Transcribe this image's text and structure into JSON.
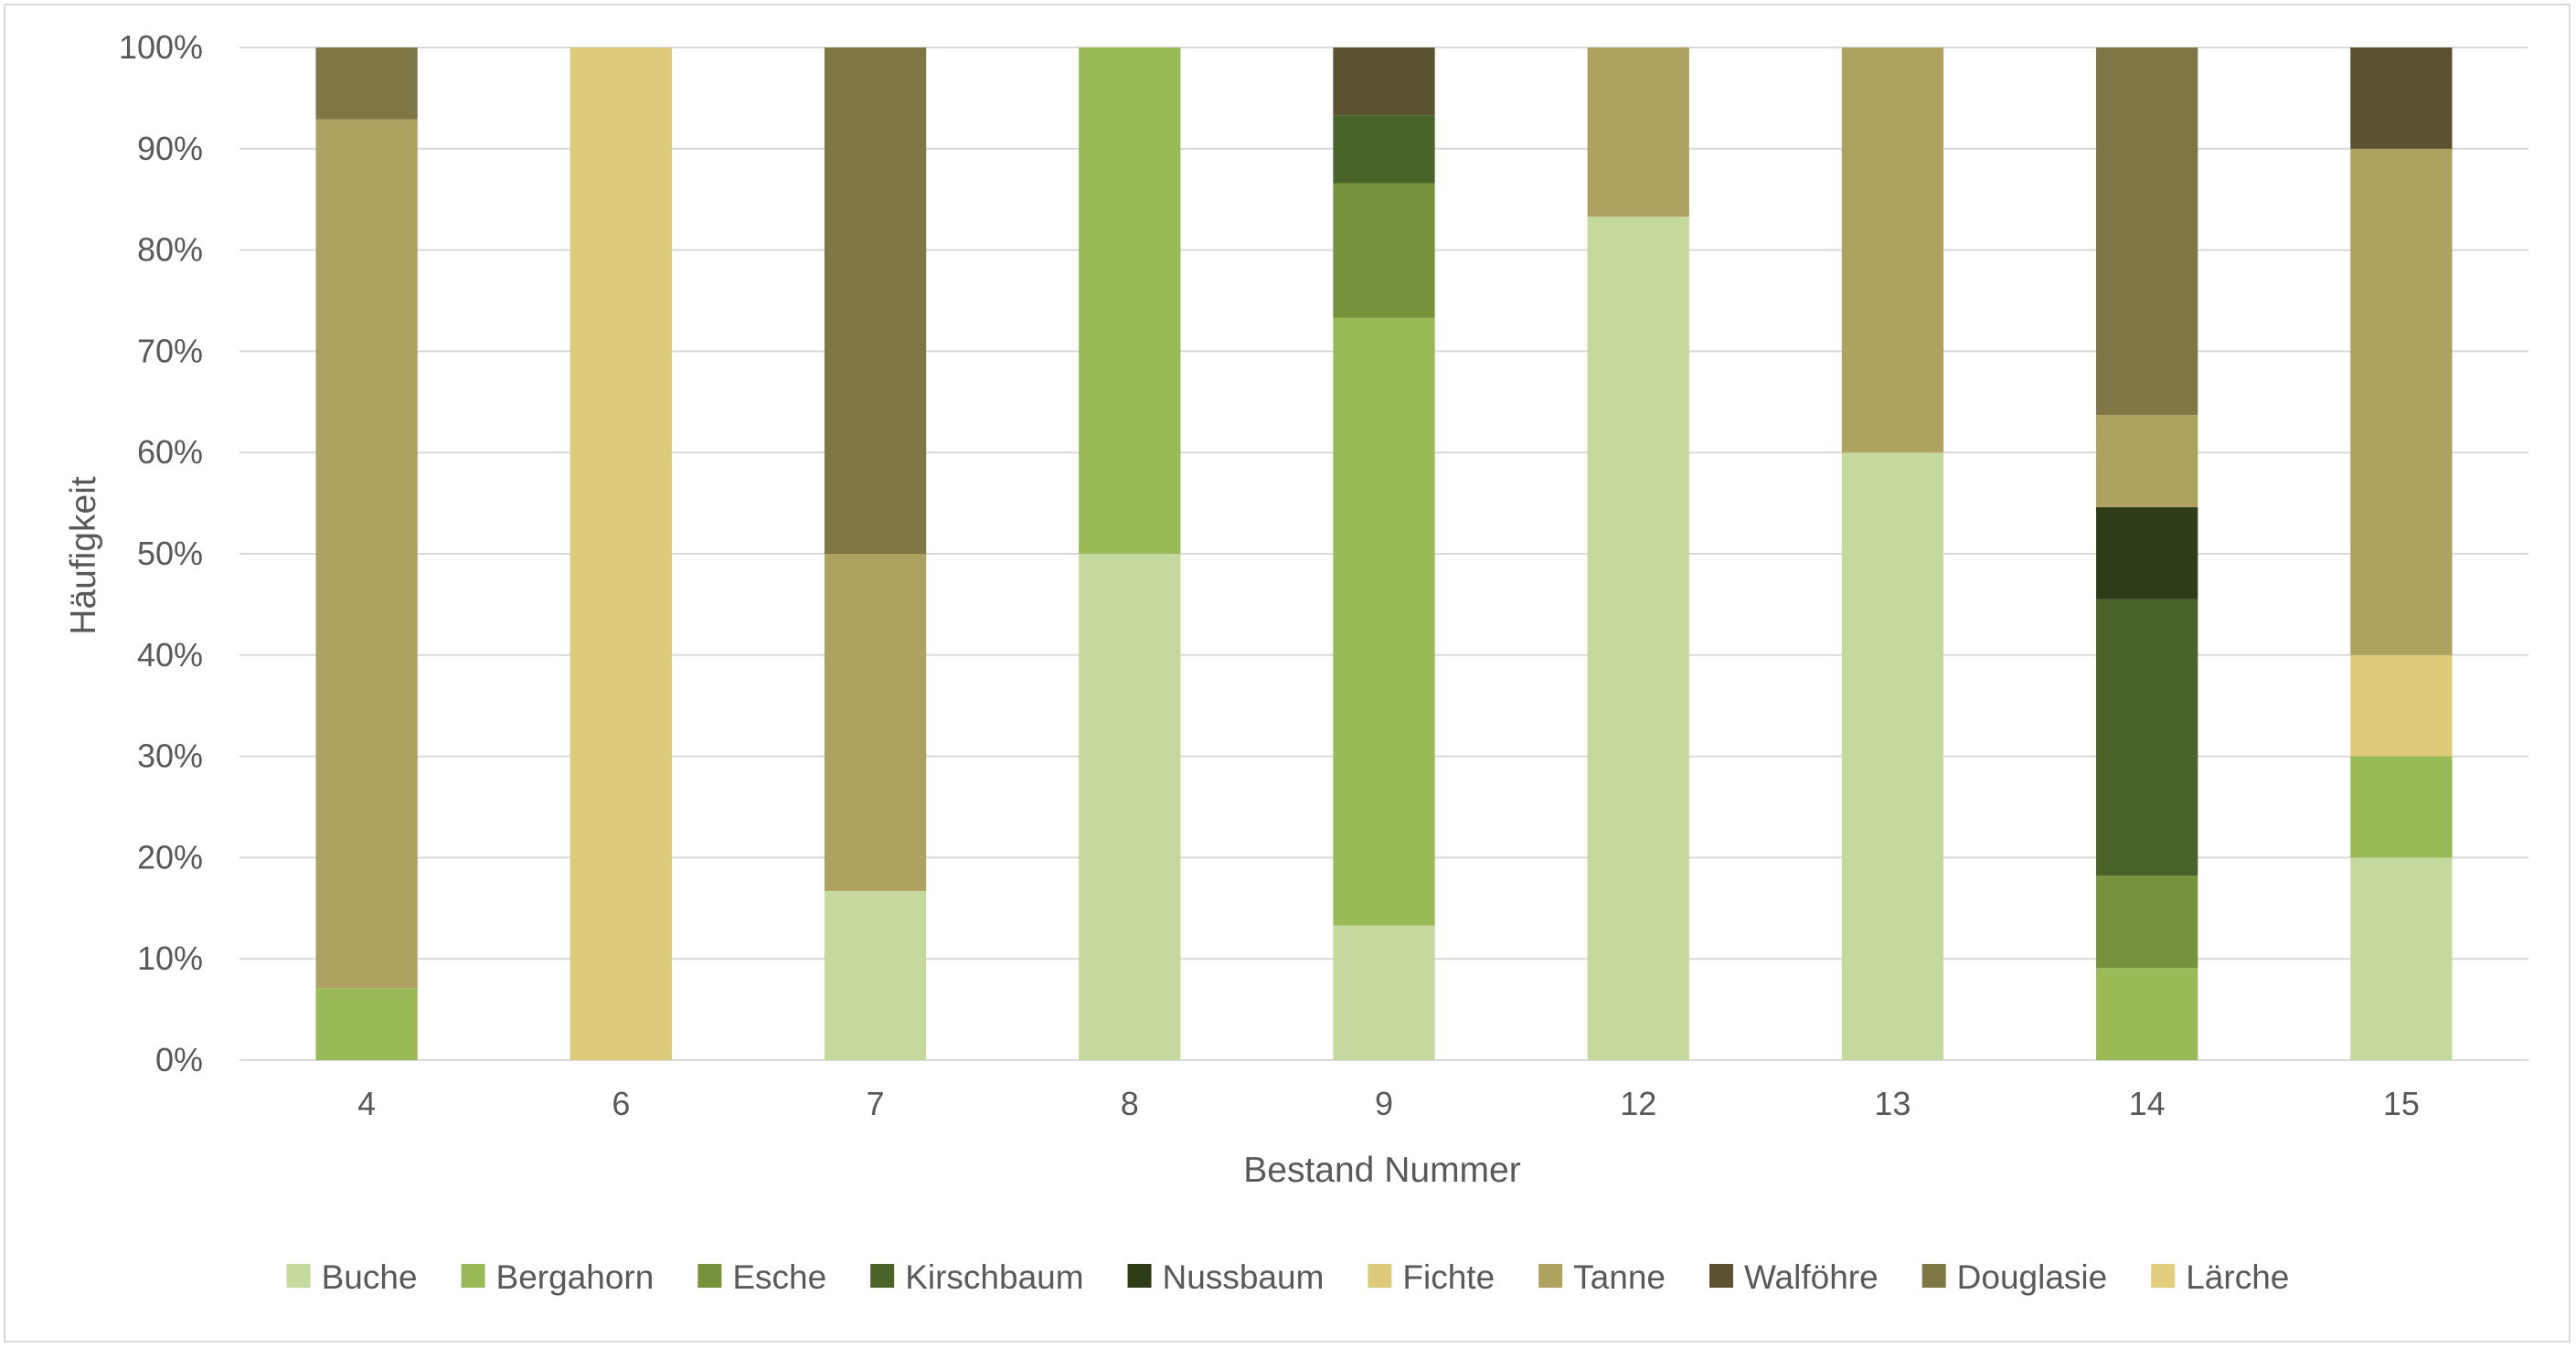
{
  "chart_data": {
    "type": "bar",
    "stacked": "percent",
    "title": "",
    "xlabel": "Bestand Nummer",
    "ylabel": "Häufigkeit",
    "ylim": [
      0,
      100
    ],
    "yticks": [
      "0%",
      "10%",
      "20%",
      "30%",
      "40%",
      "50%",
      "60%",
      "70%",
      "80%",
      "90%",
      "100%"
    ],
    "grid": true,
    "legend": "bottom",
    "categories": [
      "4",
      "6",
      "7",
      "8",
      "9",
      "12",
      "13",
      "14",
      "15"
    ],
    "series": [
      {
        "name": "Buche",
        "color": "#c5d89e",
        "values": [
          0,
          0,
          16.7,
          50,
          13.3,
          83.3,
          60,
          0,
          20
        ]
      },
      {
        "name": "Bergahorn",
        "color": "#9aba58",
        "values": [
          7.1,
          0,
          0,
          50,
          60,
          0,
          0,
          9.1,
          10
        ]
      },
      {
        "name": "Esche",
        "color": "#76933c",
        "values": [
          0,
          0,
          0,
          0,
          13.3,
          0,
          0,
          9.1,
          0
        ]
      },
      {
        "name": "Kirschbaum",
        "color": "#4a6328",
        "values": [
          0,
          0,
          0,
          0,
          6.7,
          0,
          0,
          27.3,
          0
        ]
      },
      {
        "name": "Nussbaum",
        "color": "#2e3d18",
        "values": [
          0,
          0,
          0,
          0,
          0,
          0,
          0,
          9.1,
          0
        ]
      },
      {
        "name": "Fichte",
        "color": "#ddcb7b",
        "values": [
          0,
          100,
          0,
          0,
          0,
          0,
          0,
          0,
          10
        ]
      },
      {
        "name": "Tanne",
        "color": "#ada260",
        "values": [
          85.8,
          0,
          33.3,
          0,
          0,
          16.7,
          40,
          9.1,
          50
        ]
      },
      {
        "name": "Walföhre",
        "color": "#5b5232",
        "values": [
          0,
          0,
          0,
          0,
          6.7,
          0,
          0,
          0,
          10
        ]
      },
      {
        "name": "Douglasie",
        "color": "#7f7645",
        "values": [
          7.1,
          0,
          50,
          0,
          0,
          0,
          0,
          36.3,
          0
        ]
      },
      {
        "name": "Lärche",
        "color": "#e2ce7e",
        "values": [
          0,
          0,
          0,
          0,
          0,
          0,
          0,
          0,
          0
        ]
      }
    ]
  }
}
